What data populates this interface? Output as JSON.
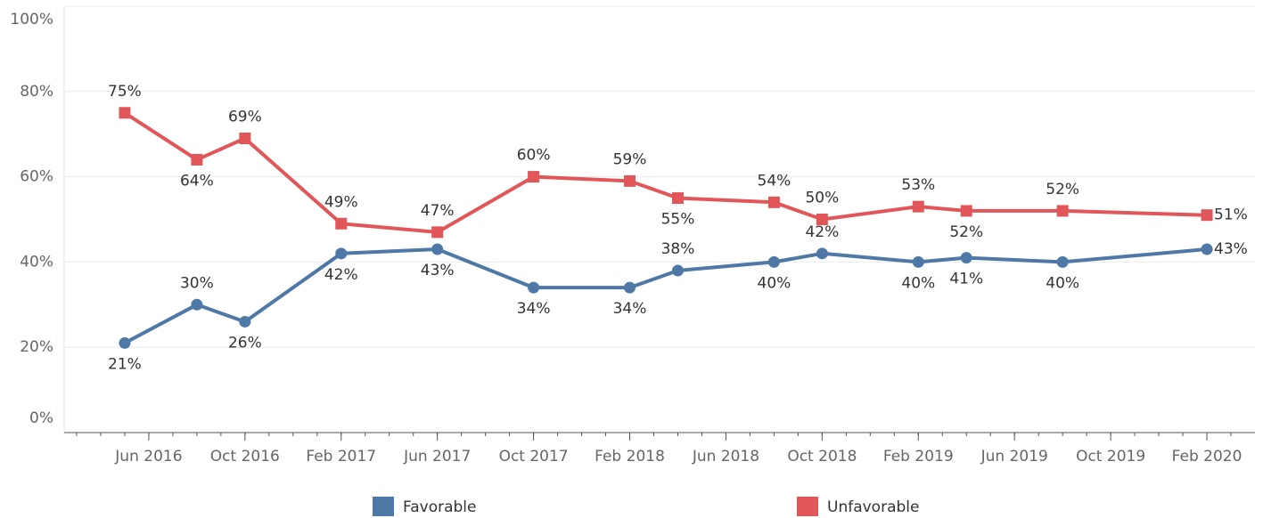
{
  "chart_data": {
    "type": "line",
    "x": [
      "2016-05",
      "2016-08",
      "2016-10",
      "2017-02",
      "2017-06",
      "2017-10",
      "2018-02",
      "2018-04",
      "2018-08",
      "2018-10",
      "2019-02",
      "2019-04",
      "2019-08",
      "2020-02"
    ],
    "series": [
      {
        "name": "Favorable",
        "color": "#4e79a7",
        "marker": "circle",
        "values": [
          21,
          30,
          26,
          42,
          43,
          34,
          34,
          38,
          40,
          42,
          40,
          41,
          40,
          43
        ],
        "value_labels": [
          "21%",
          "30%",
          "26%",
          "42%",
          "43%",
          "34%",
          "34%",
          "38%",
          "40%",
          "42%",
          "40%",
          "41%",
          "40%",
          "43%"
        ]
      },
      {
        "name": "Unfavorable",
        "color": "#e15759",
        "marker": "square",
        "values": [
          75,
          64,
          69,
          49,
          47,
          60,
          59,
          55,
          54,
          50,
          53,
          52,
          52,
          51
        ],
        "value_labels": [
          "75%",
          "64%",
          "69%",
          "49%",
          "47%",
          "60%",
          "59%",
          "55%",
          "54%",
          "50%",
          "53%",
          "52%",
          "52%",
          "51%"
        ]
      }
    ],
    "xlim": [
      "2016-02",
      "2020-04"
    ],
    "xticks": [
      {
        "value": "2016-06",
        "label": "Jun 2016"
      },
      {
        "value": "2016-10",
        "label": "Oct 2016"
      },
      {
        "value": "2017-02",
        "label": "Feb 2017"
      },
      {
        "value": "2017-06",
        "label": "Jun 2017"
      },
      {
        "value": "2017-10",
        "label": "Oct 2017"
      },
      {
        "value": "2018-02",
        "label": "Feb 2018"
      },
      {
        "value": "2018-06",
        "label": "Jun 2018"
      },
      {
        "value": "2018-10",
        "label": "Oct 2018"
      },
      {
        "value": "2019-02",
        "label": "Feb 2019"
      },
      {
        "value": "2019-06",
        "label": "Jun 2019"
      },
      {
        "value": "2019-10",
        "label": "Oct 2019"
      },
      {
        "value": "2020-02",
        "label": "Feb 2020"
      }
    ],
    "ylim": [
      0,
      100
    ],
    "yticks": [
      {
        "value": 0,
        "label": "0%"
      },
      {
        "value": 20,
        "label": "20%"
      },
      {
        "value": 40,
        "label": "40%"
      },
      {
        "value": 60,
        "label": "60%"
      },
      {
        "value": 80,
        "label": "80%"
      },
      {
        "value": 100,
        "label": "100%"
      }
    ],
    "grid": true,
    "legend": "bottom"
  }
}
